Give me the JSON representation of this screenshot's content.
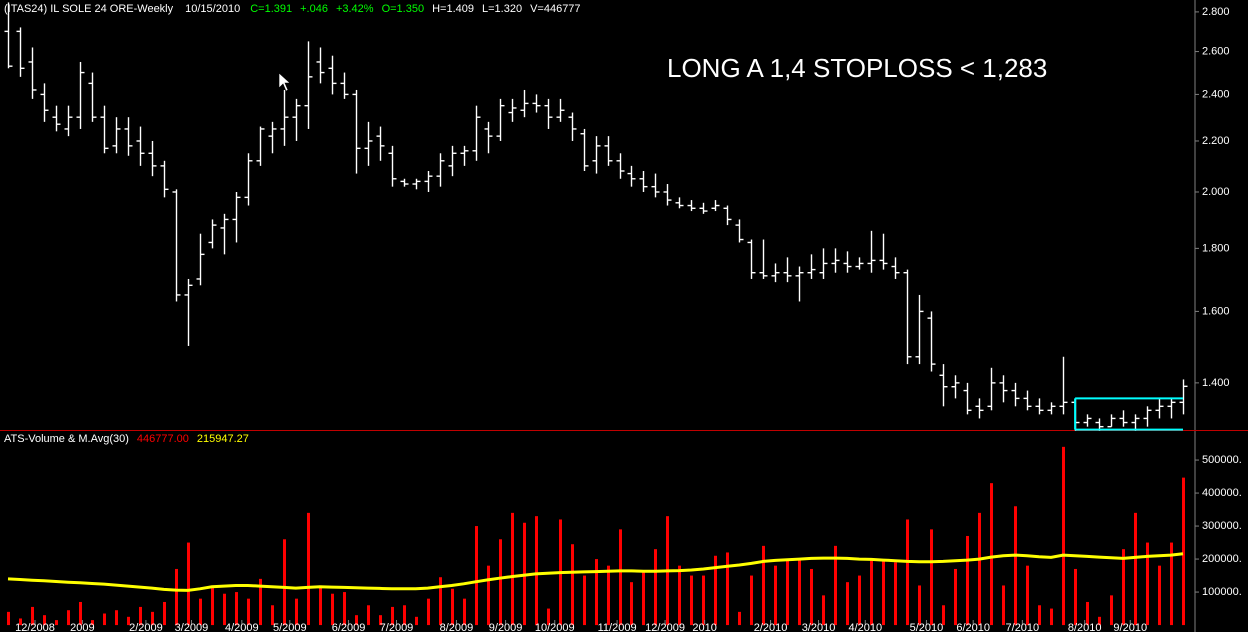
{
  "chart_data": [
    {
      "type": "ohlc",
      "title": "(ITAS24) IL SOLE 24 ORE-Weekly",
      "date": "10/15/2010",
      "quote": [
        "C=1.391",
        "+.046",
        "+3.42%",
        "O=1.350",
        "H=1.409",
        "L=1.320",
        "V=446777"
      ],
      "quote_colors": [
        "#00ff00",
        "#00ff00",
        "#00ff00",
        "#00ff00",
        "#ffffff",
        "#ffffff",
        "#ffffff"
      ],
      "annotation": "LONG A 1,4  STOPLOSS < 1,283",
      "annotation_color": "#ff0000",
      "color": "#ffffff",
      "log_scale": true,
      "xlim": [
        -0.67,
        99
      ],
      "ylim": [
        1.282,
        2.863
      ],
      "yticks": [
        {
          "value": 2.8,
          "label": "2.800"
        },
        {
          "value": 2.6,
          "label": "2.600"
        },
        {
          "value": 2.4,
          "label": "2.400"
        },
        {
          "value": 2.2,
          "label": "2.200"
        },
        {
          "value": 2.0,
          "label": "2.000"
        },
        {
          "value": 1.8,
          "label": "1.800"
        },
        {
          "value": 1.6,
          "label": "1.600"
        },
        {
          "value": 1.4,
          "label": "1.400"
        }
      ],
      "open": [
        2.7,
        2.7,
        2.55,
        2.4,
        2.3,
        2.25,
        2.3,
        2.45,
        2.3,
        2.18,
        2.25,
        2.2,
        2.15,
        2.1,
        2.0,
        1.65,
        1.7,
        1.82,
        1.87,
        1.9,
        1.98,
        2.12,
        2.22,
        2.25,
        2.3,
        2.35,
        2.55,
        2.52,
        2.45,
        2.4,
        2.17,
        2.22,
        2.15,
        2.04,
        2.03,
        2.04,
        2.06,
        2.1,
        2.15,
        2.16,
        2.25,
        2.22,
        2.32,
        2.33,
        2.36,
        2.35,
        2.3,
        2.3,
        2.23,
        2.12,
        2.18,
        2.12,
        2.07,
        2.05,
        2.02,
        2.0,
        1.96,
        1.95,
        1.94,
        1.94,
        1.94,
        1.88,
        1.82,
        1.72,
        1.71,
        1.72,
        1.71,
        1.72,
        1.72,
        1.75,
        1.75,
        1.74,
        1.75,
        1.76,
        1.74,
        1.72,
        1.47,
        1.58,
        1.42,
        1.39,
        1.38,
        1.34,
        1.34,
        1.4,
        1.38,
        1.36,
        1.34,
        1.33,
        1.34,
        1.35,
        1.3,
        1.3,
        1.29,
        1.31,
        1.3,
        1.31,
        1.33,
        1.34,
        1.35
      ],
      "high": [
        2.85,
        2.72,
        2.62,
        2.45,
        2.35,
        2.35,
        2.55,
        2.5,
        2.35,
        2.3,
        2.3,
        2.26,
        2.2,
        2.12,
        2.01,
        1.7,
        1.85,
        1.9,
        1.92,
        2.0,
        2.15,
        2.26,
        2.28,
        2.42,
        2.38,
        2.65,
        2.62,
        2.58,
        2.5,
        2.42,
        2.28,
        2.26,
        2.18,
        2.05,
        2.05,
        2.08,
        2.15,
        2.18,
        2.18,
        2.35,
        2.28,
        2.38,
        2.38,
        2.42,
        2.4,
        2.38,
        2.38,
        2.32,
        2.25,
        2.22,
        2.22,
        2.15,
        2.1,
        2.08,
        2.07,
        2.03,
        1.98,
        1.97,
        1.96,
        1.97,
        1.95,
        1.9,
        1.83,
        1.83,
        1.75,
        1.77,
        1.74,
        1.78,
        1.8,
        1.8,
        1.79,
        1.77,
        1.86,
        1.85,
        1.77,
        1.73,
        1.65,
        1.6,
        1.45,
        1.42,
        1.4,
        1.36,
        1.44,
        1.42,
        1.4,
        1.38,
        1.36,
        1.35,
        1.47,
        1.36,
        1.32,
        1.31,
        1.32,
        1.33,
        1.32,
        1.34,
        1.36,
        1.36,
        1.409
      ],
      "low": [
        2.52,
        2.48,
        2.38,
        2.28,
        2.24,
        2.22,
        2.25,
        2.28,
        2.15,
        2.15,
        2.14,
        2.1,
        2.06,
        1.98,
        1.63,
        1.5,
        1.68,
        1.8,
        1.78,
        1.82,
        1.95,
        2.1,
        2.15,
        2.18,
        2.2,
        2.25,
        2.45,
        2.4,
        2.38,
        2.07,
        2.1,
        2.12,
        2.02,
        2.02,
        2.01,
        2.0,
        2.02,
        2.06,
        2.1,
        2.12,
        2.15,
        2.2,
        2.28,
        2.3,
        2.32,
        2.25,
        2.28,
        2.2,
        2.08,
        2.07,
        2.1,
        2.05,
        2.02,
        2.0,
        1.98,
        1.95,
        1.94,
        1.93,
        1.92,
        1.93,
        1.88,
        1.82,
        1.7,
        1.7,
        1.69,
        1.69,
        1.63,
        1.7,
        1.7,
        1.72,
        1.72,
        1.73,
        1.72,
        1.73,
        1.7,
        1.45,
        1.45,
        1.43,
        1.34,
        1.36,
        1.32,
        1.31,
        1.33,
        1.35,
        1.34,
        1.33,
        1.32,
        1.32,
        1.32,
        1.28,
        1.29,
        1.28,
        1.29,
        1.29,
        1.28,
        1.29,
        1.31,
        1.31,
        1.32
      ],
      "close": [
        2.53,
        2.52,
        2.42,
        2.33,
        2.27,
        2.3,
        2.5,
        2.3,
        2.17,
        2.25,
        2.18,
        2.15,
        2.1,
        2.01,
        1.65,
        1.68,
        1.78,
        1.88,
        1.9,
        1.98,
        2.12,
        2.25,
        2.25,
        2.3,
        2.35,
        2.48,
        2.5,
        2.45,
        2.4,
        2.17,
        2.2,
        2.18,
        2.05,
        2.03,
        2.04,
        2.06,
        2.12,
        2.15,
        2.16,
        2.3,
        2.22,
        2.35,
        2.34,
        2.36,
        2.35,
        2.3,
        2.33,
        2.25,
        2.1,
        2.18,
        2.12,
        2.08,
        2.05,
        2.02,
        2.0,
        1.97,
        1.95,
        1.94,
        1.93,
        1.95,
        1.9,
        1.83,
        1.72,
        1.71,
        1.72,
        1.71,
        1.72,
        1.73,
        1.75,
        1.76,
        1.74,
        1.75,
        1.76,
        1.75,
        1.72,
        1.47,
        1.6,
        1.45,
        1.39,
        1.4,
        1.33,
        1.33,
        1.4,
        1.38,
        1.36,
        1.34,
        1.33,
        1.34,
        1.35,
        1.3,
        1.31,
        1.29,
        1.31,
        1.3,
        1.31,
        1.33,
        1.34,
        1.35,
        1.391
      ],
      "box": {
        "from": 89,
        "to": 98,
        "top": 1.36,
        "bottom": 1.283,
        "color": "#00ffff"
      }
    },
    {
      "type": "bar",
      "title": "ATS-Volume & M.Avg(30)",
      "last_value_label": "446777.00",
      "last_value_color": "#ff0000",
      "last_average_label": "215947.27",
      "last_average_color": "#ffff00",
      "color": "#ff0000",
      "xlim": [
        -0.67,
        99
      ],
      "ylim": [
        -21000,
        585000
      ],
      "yticks": [
        {
          "value": 500000,
          "label": "500000."
        },
        {
          "value": 400000,
          "label": "400000."
        },
        {
          "value": 300000,
          "label": "300000."
        },
        {
          "value": 200000,
          "label": "200000."
        },
        {
          "value": 100000,
          "label": "100000."
        }
      ],
      "xticks": [
        {
          "value": 2.25,
          "label": "12/2008"
        },
        {
          "value": 6.2,
          "label": "2009"
        },
        {
          "value": 11.5,
          "label": "2/2009"
        },
        {
          "value": 15.3,
          "label": "3/2009"
        },
        {
          "value": 19.5,
          "label": "4/2009"
        },
        {
          "value": 23.5,
          "label": "5/2009"
        },
        {
          "value": 28.4,
          "label": "6/2009"
        },
        {
          "value": 32.4,
          "label": "7/2009"
        },
        {
          "value": 37.4,
          "label": "8/2009"
        },
        {
          "value": 41.5,
          "label": "9/2009"
        },
        {
          "value": 45.6,
          "label": "10/2009"
        },
        {
          "value": 50.8,
          "label": "11/2009"
        },
        {
          "value": 54.8,
          "label": "12/2009"
        },
        {
          "value": 58.1,
          "label": "2010"
        },
        {
          "value": 63.6,
          "label": "2/2010"
        },
        {
          "value": 67.6,
          "label": "3/2010"
        },
        {
          "value": 71.5,
          "label": "4/2010"
        },
        {
          "value": 76.6,
          "label": "5/2010"
        },
        {
          "value": 80.5,
          "label": "6/2010"
        },
        {
          "value": 84.6,
          "label": "7/2010"
        },
        {
          "value": 89.8,
          "label": "8/2010"
        },
        {
          "value": 93.6,
          "label": "9/2010"
        }
      ],
      "values": [
        40000,
        20000,
        55000,
        30000,
        15000,
        45000,
        70000,
        15000,
        35000,
        45000,
        25000,
        55000,
        40000,
        70000,
        170000,
        250000,
        80000,
        120000,
        95000,
        100000,
        80000,
        140000,
        60000,
        260000,
        80000,
        340000,
        120000,
        95000,
        100000,
        30000,
        60000,
        30000,
        55000,
        60000,
        25000,
        80000,
        145000,
        110000,
        80000,
        300000,
        180000,
        260000,
        340000,
        310000,
        330000,
        50000,
        320000,
        245000,
        150000,
        200000,
        180000,
        290000,
        130000,
        160000,
        230000,
        330000,
        180000,
        150000,
        150000,
        210000,
        220000,
        40000,
        150000,
        240000,
        180000,
        200000,
        200000,
        170000,
        90000,
        240000,
        130000,
        150000,
        200000,
        200000,
        190000,
        320000,
        120000,
        290000,
        60000,
        170000,
        270000,
        340000,
        430000,
        120000,
        360000,
        180000,
        60000,
        50000,
        540000,
        170000,
        70000,
        25000,
        90000,
        230000,
        340000,
        250000,
        180000,
        250000,
        446777
      ],
      "average": {
        "color": "#ffff00",
        "values": [
          140000,
          138000,
          136000,
          134000,
          132000,
          130000,
          128000,
          126000,
          124000,
          121000,
          118000,
          115000,
          112000,
          108000,
          106000,
          105000,
          110000,
          116000,
          118000,
          120000,
          120000,
          118000,
          116000,
          114000,
          112000,
          114000,
          116000,
          115000,
          114000,
          113000,
          112000,
          111000,
          110000,
          110000,
          110000,
          112000,
          116000,
          120000,
          125000,
          131000,
          137000,
          142000,
          147000,
          151000,
          155000,
          157000,
          159000,
          160000,
          161000,
          162000,
          163000,
          164000,
          164000,
          163000,
          163000,
          164000,
          165000,
          167000,
          170000,
          174000,
          178000,
          182000,
          187000,
          193000,
          196000,
          198000,
          200000,
          202000,
          203000,
          203000,
          202000,
          200000,
          199000,
          197000,
          195000,
          193000,
          192000,
          192000,
          193000,
          195000,
          197000,
          200000,
          206000,
          210000,
          212000,
          210000,
          207000,
          205000,
          212000,
          210000,
          208000,
          206000,
          204000,
          202000,
          205000,
          208000,
          210000,
          212000,
          215947.27
        ]
      }
    }
  ]
}
